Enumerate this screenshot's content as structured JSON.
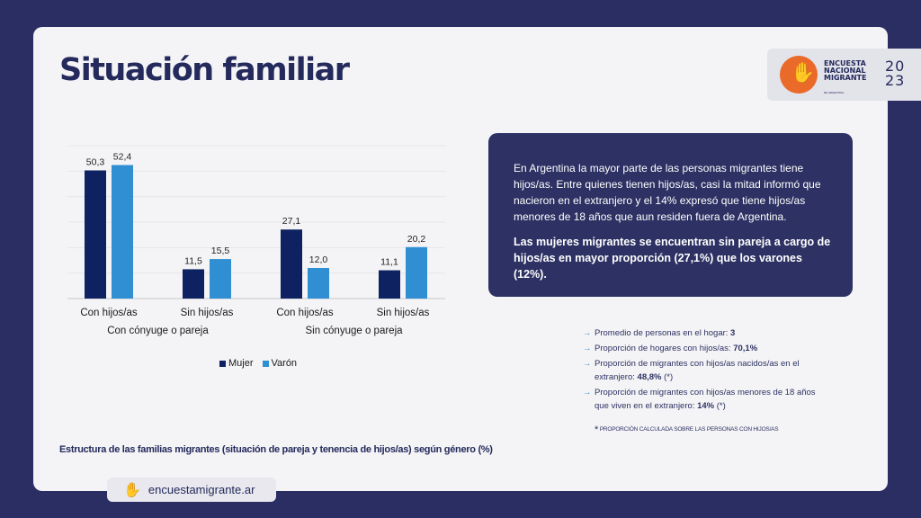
{
  "title": "Situación familiar",
  "logo": {
    "line1": "ENCUESTA",
    "line2": "NACIONAL",
    "line3": "MIGRANTE",
    "sub": "DE ARGENTINA",
    "year_top": "20",
    "year_bottom": "23",
    "icon": "hand-icon"
  },
  "chart_data": {
    "type": "bar",
    "categories": [
      "Con hijos/as",
      "Sin hijos/as",
      "Con hijos/as",
      "Sin hijos/as"
    ],
    "groups": [
      {
        "label": "Con cónyuge o pareja",
        "categories": [
          "Con hijos/as",
          "Sin hijos/as"
        ]
      },
      {
        "label": "Sin cónyuge o pareja",
        "categories": [
          "Con hijos/as",
          "Sin hijos/as"
        ]
      }
    ],
    "series": [
      {
        "name": "Mujer",
        "color": "#0e2261",
        "values": [
          50.3,
          11.5,
          27.1,
          11.1
        ],
        "labels": [
          "50,3",
          "11,5",
          "27,1",
          "11,1"
        ]
      },
      {
        "name": "Varón",
        "color": "#2f8fd2",
        "values": [
          52.4,
          15.5,
          12.0,
          20.2
        ],
        "labels": [
          "52,4",
          "15,5",
          "12,0",
          "20,2"
        ]
      }
    ],
    "ylim": [
      0,
      60
    ],
    "grid": true,
    "legend": "bottom",
    "caption": "Estructura de las familias migrantes (situación de pareja y tenencia de hijos/as) según género (%)"
  },
  "info": {
    "paragraph": "En Argentina la mayor parte de las personas migrantes tiene hijos/as. Entre quienes tienen hijos/as, casi la mitad informó que nacieron en el extranjero y el 14% expresó que tiene hijos/as menores de 18 años que aun residen fuera de Argentina.",
    "highlight": "Las mujeres migrantes se encuentran sin pareja a cargo de hijos/as en mayor proporción (27,1%) que los varones (12%)."
  },
  "facts": [
    {
      "text": "Promedio de personas en el hogar: ",
      "value": "3",
      "suffix": ""
    },
    {
      "text": "Proporción de hogares con hijos/as: ",
      "value": "70,1%",
      "suffix": ""
    },
    {
      "text": "Proporción de migrantes con hijos/as nacidos/as en el extranjero: ",
      "value": "48,8%",
      "suffix": " (*)"
    },
    {
      "text": "Proporción de migrantes con hijos/as menores de 18 años que viven en el extranjero: ",
      "value": "14%",
      "suffix": " (*)"
    }
  ],
  "footnote": {
    "star": "*",
    "text": "Proporción calculada sobre las personas con hijos/as"
  },
  "url": "encuestamigrante.ar"
}
